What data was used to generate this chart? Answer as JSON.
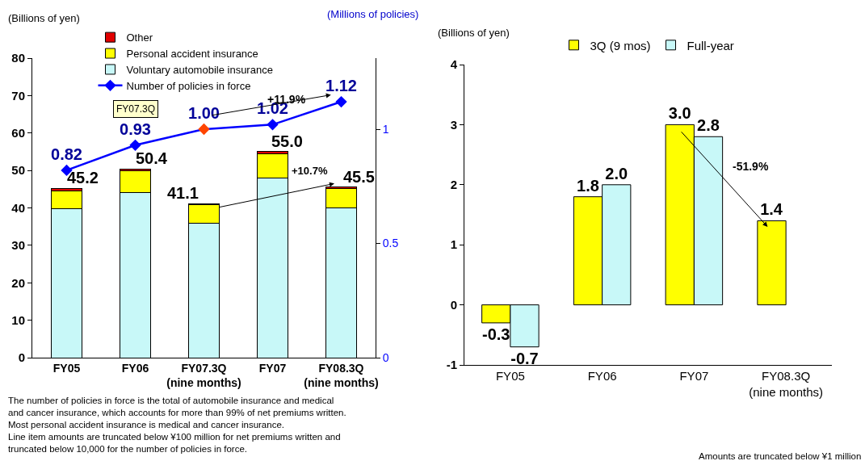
{
  "chart_data": [
    {
      "type": "bar",
      "stacked": true,
      "legend": "top left",
      "marker": "diamond",
      "categories": [
        "FY05",
        "FY06",
        "FY07.3Q\n(nine months)",
        "FY07",
        "FY08.3Q\n(nine months)"
      ],
      "ylabel": "(Billions of yen)",
      "y2label": "(Millions of policies)",
      "ylim": [
        0,
        80
      ],
      "yticks": [
        0,
        10,
        20,
        30,
        40,
        50,
        60,
        70,
        80
      ],
      "y2lim": [
        0,
        1.311
      ],
      "y2ticks": [
        0,
        0.5,
        1
      ],
      "series": [
        {
          "name": "Voluntary automobile insurance",
          "color": "#c8f8f8",
          "values": [
            39.8,
            44.0,
            35.9,
            48.0,
            40.0
          ]
        },
        {
          "name": "Personal accident insurance",
          "color": "#ffff00",
          "values": [
            4.8,
            6.0,
            4.9,
            6.5,
            5.2
          ]
        },
        {
          "name": "Other",
          "color": "#e00000",
          "values": [
            0.6,
            0.4,
            0.3,
            0.5,
            0.3
          ]
        },
        {
          "name": "Number of policies in force",
          "type": "line",
          "axis": "y2",
          "color": "#0000ff",
          "colors": [
            "#0000ff",
            "#0000ff",
            "#ff4500",
            "#0000ff",
            "#0000ff"
          ],
          "values": [
            0.82,
            0.93,
            1.0,
            1.02,
            1.12
          ],
          "value_labels": [
            "0.82",
            "0.93",
            "1.00",
            "1.02",
            "1.12"
          ]
        }
      ],
      "totals": [
        "45.2",
        "50.4",
        "41.1",
        "55.0",
        "45.5"
      ],
      "annotations": [
        "FY07.3Q",
        "+11.9%",
        "+10.7%",
        "The number of policies in force is the total of automobile insurance and medical\nand cancer insurance, which accounts for more than 99% of net premiums written.\nMost personal accident insurance is medical and cancer insurance.\nLine item amounts are truncated below ¥100 million for net premiums written and\ntruncated below 10,000 for the number of policies in force."
      ]
    },
    {
      "type": "bar",
      "legend": "top",
      "categories": [
        "FY05",
        "FY06",
        "FY07",
        "FY08.3Q\n(nine months)"
      ],
      "ylabel": "(Billions of yen)",
      "ylim": [
        -1,
        4
      ],
      "yticks": [
        -1,
        0,
        1,
        2,
        3,
        4
      ],
      "series": [
        {
          "name": "3Q (9 mos)",
          "color": "#ffff00",
          "values": [
            -0.3,
            1.8,
            3.0,
            1.4
          ],
          "value_labels": [
            "-0.3",
            "1.8",
            "3.0",
            "1.4"
          ]
        },
        {
          "name": "Full-year",
          "color": "#c8f8f8",
          "values": [
            -0.7,
            2.0,
            2.8,
            null
          ],
          "value_labels": [
            "-0.7",
            "2.0",
            "2.8",
            null
          ]
        }
      ],
      "annotations": [
        "-51.9%",
        "Amounts are truncated below ¥1 million"
      ]
    }
  ]
}
